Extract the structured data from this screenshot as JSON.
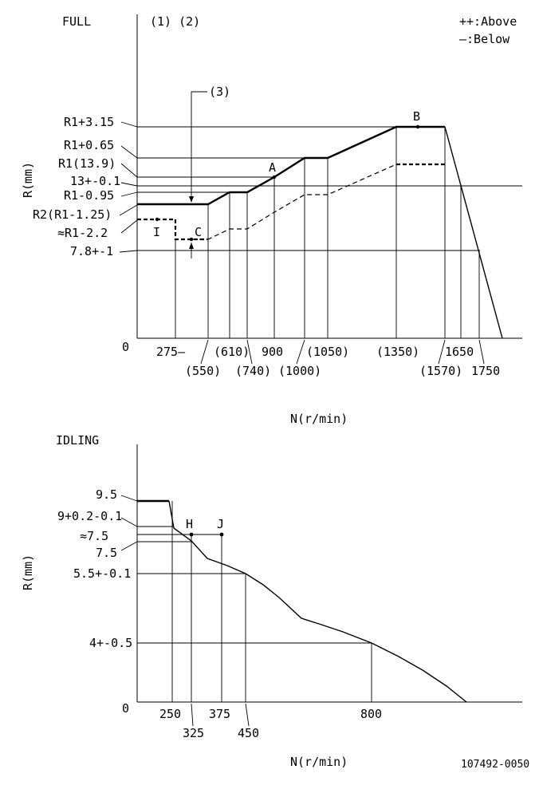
{
  "full": {
    "title": "FULL",
    "notes": "(1) (2)",
    "legend_above": "++:Above",
    "legend_below": "—:Below",
    "callout_3": "(3)",
    "ylabel": "R(mm)",
    "xlabel": "N(r/min)",
    "origin": "0",
    "y_labels": [
      "R1+3.15",
      "R1+0.65",
      "R1(13.9)",
      "13+-0.1",
      "R1-0.95",
      "R2(R1-1.25)",
      "≈R1-2.2",
      "7.8+-1"
    ],
    "x_labels_top": [
      "275—",
      "(610)",
      "900",
      "(1050)",
      "(1350)",
      "1650"
    ],
    "x_labels_bottom": [
      "(550)",
      "(740)",
      "(1000)",
      "(1570)",
      "1750"
    ],
    "points": {
      "A": "A",
      "B": "B",
      "C": "C",
      "I": "I"
    }
  },
  "idling": {
    "title": "IDLING",
    "ylabel": "R(mm)",
    "xlabel": "N(r/min)",
    "origin": "0",
    "y_labels": [
      "9.5",
      "9+0.2-0.1",
      "≈7.5",
      "7.5",
      "5.5+-0.1",
      "4+-0.5"
    ],
    "x_labels_top": [
      "250",
      "375",
      "800"
    ],
    "x_labels_bottom": [
      "325",
      "450"
    ],
    "points": {
      "H": "H",
      "J": "J"
    }
  },
  "footer_code": "107492-0050"
}
